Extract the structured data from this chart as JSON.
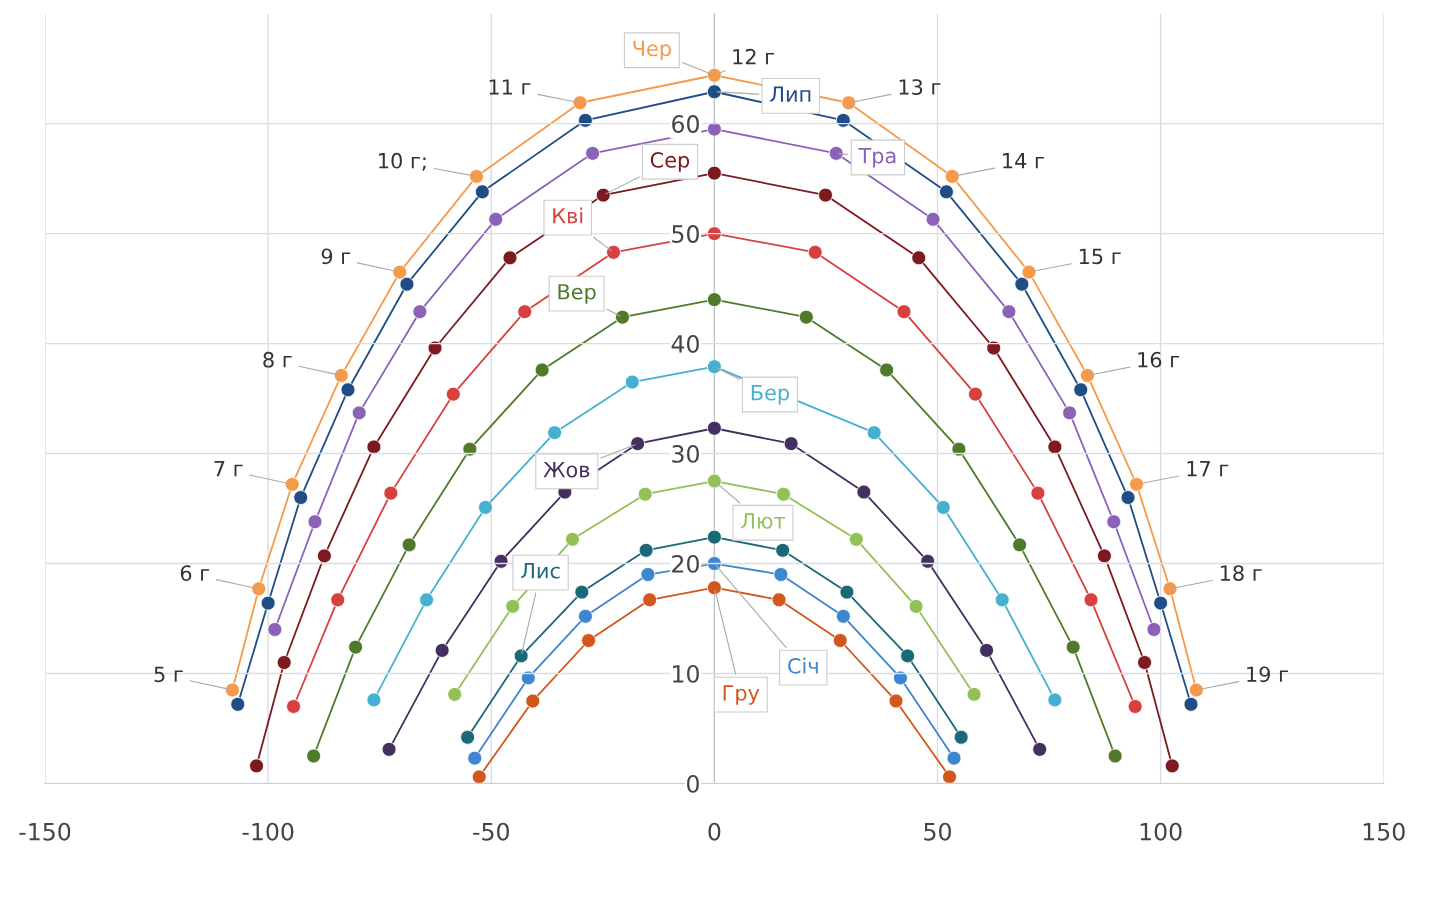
{
  "chart_data": {
    "type": "line",
    "xlim": [
      -150,
      150
    ],
    "ylim": [
      0,
      70
    ],
    "xticks": [
      -150,
      -100,
      -50,
      0,
      50,
      100,
      150
    ],
    "yticks": [
      0,
      10,
      20,
      30,
      40,
      50,
      60
    ],
    "grid": true,
    "marker": "circle",
    "line_style": "solid",
    "series": [
      {
        "name": "Чер",
        "color": "#f59a4a",
        "x": [
          -108.0,
          -102.1,
          -94.6,
          -83.6,
          -70.5,
          -53.3,
          -30.1,
          0,
          30.1,
          53.3,
          70.5,
          83.6,
          94.6,
          102.1,
          108.0
        ],
        "values": [
          8.5,
          17.7,
          27.2,
          37.1,
          46.5,
          55.2,
          61.9,
          64.4,
          61.9,
          55.2,
          46.5,
          37.1,
          27.2,
          17.7,
          8.5
        ]
      },
      {
        "name": "Лип",
        "color": "#1f4e86",
        "x": [
          -106.8,
          -100.0,
          -92.7,
          -82.1,
          -68.9,
          -52.0,
          -28.9,
          0,
          28.9,
          52.0,
          68.9,
          82.1,
          92.7,
          100.0,
          106.8
        ],
        "values": [
          7.2,
          16.4,
          26.0,
          35.8,
          45.4,
          53.8,
          60.3,
          62.9,
          60.3,
          53.8,
          45.4,
          35.8,
          26.0,
          16.4,
          7.2
        ]
      },
      {
        "name": "Тра",
        "color": "#8a63b8",
        "x": [
          -98.5,
          -89.5,
          -79.6,
          -66.0,
          -49.0,
          -27.3,
          0,
          27.3,
          49.0,
          66.0,
          79.6,
          89.5,
          98.5
        ],
        "values": [
          14.0,
          23.8,
          33.7,
          42.9,
          51.3,
          57.3,
          59.5,
          57.3,
          51.3,
          42.9,
          33.7,
          23.8,
          14.0
        ]
      },
      {
        "name": "Сер",
        "color": "#7b1a1f",
        "x": [
          -102.6,
          -96.4,
          -87.4,
          -76.3,
          -62.6,
          -45.8,
          -24.9,
          0,
          24.9,
          45.8,
          62.6,
          76.3,
          87.4,
          96.4,
          102.6
        ],
        "values": [
          1.6,
          11.0,
          20.7,
          30.6,
          39.6,
          47.8,
          53.5,
          55.5,
          53.5,
          47.8,
          39.6,
          30.6,
          20.7,
          11.0,
          1.6
        ]
      },
      {
        "name": "Кві",
        "color": "#d6413f",
        "x": [
          -94.3,
          -84.4,
          -72.5,
          -58.5,
          -42.5,
          -22.6,
          0,
          22.6,
          42.5,
          58.5,
          72.5,
          84.4,
          94.3
        ],
        "values": [
          7.0,
          16.7,
          26.4,
          35.4,
          42.9,
          48.3,
          50.0,
          48.3,
          42.9,
          35.4,
          26.4,
          16.7,
          7.0
        ]
      },
      {
        "name": "Вер",
        "color": "#4e7a2a",
        "x": [
          -89.8,
          -80.4,
          -68.4,
          -54.8,
          -38.6,
          -20.6,
          0,
          20.6,
          38.6,
          54.8,
          68.4,
          80.4,
          89.8
        ],
        "values": [
          2.5,
          12.4,
          21.7,
          30.4,
          37.6,
          42.4,
          44.0,
          42.4,
          37.6,
          30.4,
          21.7,
          12.4,
          2.5
        ]
      },
      {
        "name": "Бер",
        "color": "#46b0d0",
        "x": [
          -76.3,
          -64.5,
          -51.3,
          -35.8,
          -18.4,
          0,
          18.4,
          35.8,
          51.3,
          64.5,
          76.3
        ],
        "values": [
          7.6,
          16.7,
          25.1,
          31.9,
          36.5,
          37.9,
          null,
          31.9,
          25.1,
          16.7,
          7.6
        ]
      },
      {
        "name": "Жов",
        "color": "#43305e",
        "x": [
          -72.9,
          -61.0,
          -47.8,
          -33.5,
          -17.2,
          0,
          17.2,
          33.5,
          47.8,
          61.0,
          72.9
        ],
        "values": [
          3.1,
          12.1,
          20.2,
          26.5,
          30.9,
          32.3,
          30.9,
          26.5,
          20.2,
          12.1,
          3.1
        ]
      },
      {
        "name": "Лют",
        "color": "#94c156",
        "x": [
          -58.2,
          -45.2,
          -31.8,
          -15.5,
          0,
          15.5,
          31.8,
          45.2,
          58.2
        ],
        "values": [
          8.1,
          16.1,
          22.2,
          26.3,
          27.5,
          26.3,
          22.2,
          16.1,
          8.1
        ]
      },
      {
        "name": "Лис",
        "color": "#1b6878",
        "x": [
          -55.3,
          -43.3,
          -29.7,
          -15.3,
          0,
          15.3,
          29.7,
          43.3,
          55.3
        ],
        "values": [
          4.2,
          11.6,
          17.4,
          21.2,
          22.4,
          21.2,
          17.4,
          11.6,
          4.2
        ]
      },
      {
        "name": "Січ",
        "color": "#3d86d0",
        "x": [
          -53.7,
          -41.7,
          -28.9,
          -14.9,
          0,
          14.9,
          28.9,
          41.7,
          53.7
        ],
        "values": [
          2.3,
          9.6,
          15.2,
          19.0,
          20.0,
          19.0,
          15.2,
          9.6,
          2.3
        ]
      },
      {
        "name": "Гру",
        "color": "#d2571c",
        "x": [
          -52.7,
          -40.7,
          -28.2,
          -14.5,
          0,
          14.5,
          28.2,
          40.7,
          52.7
        ],
        "values": [
          0.6,
          7.5,
          13.0,
          16.7,
          17.8,
          16.7,
          13.0,
          7.5,
          0.6
        ]
      }
    ],
    "annotations": [
      {
        "text": "5 г",
        "x": -108.0,
        "y": 8.5
      },
      {
        "text": "6 г",
        "x": -102.1,
        "y": 17.7
      },
      {
        "text": "7 г",
        "x": -94.6,
        "y": 27.2
      },
      {
        "text": "8 г",
        "x": -83.6,
        "y": 37.1
      },
      {
        "text": "9 г",
        "x": -70.5,
        "y": 46.5
      },
      {
        "text": "10 г;",
        "x": -53.3,
        "y": 55.2
      },
      {
        "text": "11 г",
        "x": -30.1,
        "y": 61.9
      },
      {
        "text": "12 г",
        "x": 0,
        "y": 64.4
      },
      {
        "text": "13 г",
        "x": 30.1,
        "y": 61.9
      },
      {
        "text": "14 г",
        "x": 53.3,
        "y": 55.2
      },
      {
        "text": "15 г",
        "x": 70.5,
        "y": 46.5
      },
      {
        "text": "16 г",
        "x": 83.6,
        "y": 37.1
      },
      {
        "text": "17 г",
        "x": 94.6,
        "y": 27.2
      },
      {
        "text": "18 г",
        "x": 102.1,
        "y": 17.7
      },
      {
        "text": "19 г",
        "x": 108.0,
        "y": 8.5
      }
    ]
  }
}
